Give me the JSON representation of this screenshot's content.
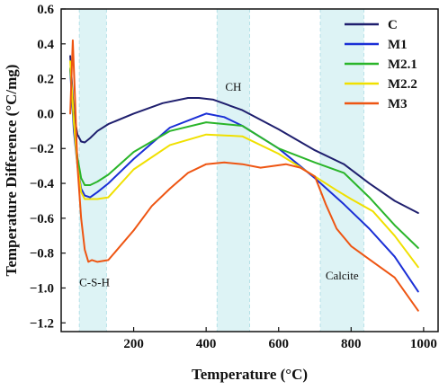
{
  "chart_data": {
    "type": "line",
    "xlabel": "Temperature (°C)",
    "ylabel": "Temperature Difference (°C/mg)",
    "xlim": [
      0,
      1040
    ],
    "ylim": [
      -1.25,
      0.6
    ],
    "xticks": [
      {
        "v": 200,
        "label": "200"
      },
      {
        "v": 400,
        "label": "400"
      },
      {
        "v": 600,
        "label": "600"
      },
      {
        "v": 800,
        "label": "800"
      },
      {
        "v": 1000,
        "label": "1000"
      }
    ],
    "yticks": [
      {
        "v": 0.6,
        "label": "0.6"
      },
      {
        "v": 0.4,
        "label": "0.4"
      },
      {
        "v": 0.2,
        "label": "0.2"
      },
      {
        "v": 0.0,
        "label": "0.0"
      },
      {
        "v": -0.2,
        "label": "−0.2"
      },
      {
        "v": -0.4,
        "label": "−0.4"
      },
      {
        "v": -0.6,
        "label": "−0.6"
      },
      {
        "v": -0.8,
        "label": "−0.8"
      },
      {
        "v": -1.0,
        "label": "−1.0"
      },
      {
        "v": -1.2,
        "label": "−1.2"
      }
    ],
    "grid": false,
    "legend_position": "top-right",
    "regions": [
      {
        "label": "C-S-H",
        "x0": 50,
        "x1": 125,
        "label_x": 92,
        "label_y": -0.99,
        "color": "#ddf3f5"
      },
      {
        "label": "CH",
        "x0": 430,
        "x1": 520,
        "label_x": 475,
        "label_y": 0.13,
        "color": "#ddf3f5"
      },
      {
        "label": "Calcite",
        "x0": 715,
        "x1": 835,
        "label_x": 775,
        "label_y": -0.95,
        "color": "#ddf3f5"
      }
    ],
    "series": [
      {
        "name": "C",
        "color": "#1f1f6e",
        "x": [
          25,
          35,
          45,
          55,
          65,
          80,
          100,
          130,
          200,
          280,
          350,
          380,
          420,
          500,
          600,
          700,
          780,
          850,
          920,
          985
        ],
        "y": [
          0.33,
          0.0,
          -0.12,
          -0.16,
          -0.165,
          -0.14,
          -0.1,
          -0.06,
          0.0,
          0.06,
          0.09,
          0.09,
          0.08,
          0.02,
          -0.09,
          -0.21,
          -0.29,
          -0.4,
          -0.5,
          -0.57
        ]
      },
      {
        "name": "M1",
        "color": "#1a2fd6",
        "x": [
          25,
          35,
          45,
          55,
          65,
          80,
          100,
          130,
          200,
          300,
          400,
          450,
          500,
          600,
          700,
          780,
          850,
          920,
          985
        ],
        "y": [
          0.25,
          -0.1,
          -0.3,
          -0.43,
          -0.47,
          -0.48,
          -0.45,
          -0.4,
          -0.26,
          -0.08,
          0.0,
          -0.02,
          -0.07,
          -0.2,
          -0.37,
          -0.52,
          -0.66,
          -0.82,
          -1.02
        ]
      },
      {
        "name": "M2.1",
        "color": "#2ab52a",
        "x": [
          25,
          35,
          45,
          55,
          65,
          80,
          100,
          130,
          200,
          300,
          400,
          500,
          600,
          700,
          780,
          850,
          920,
          985
        ],
        "y": [
          0.26,
          -0.05,
          -0.25,
          -0.37,
          -0.41,
          -0.41,
          -0.39,
          -0.35,
          -0.22,
          -0.1,
          -0.05,
          -0.07,
          -0.2,
          -0.28,
          -0.34,
          -0.48,
          -0.64,
          -0.77
        ]
      },
      {
        "name": "M2.2",
        "color": "#f0e000",
        "x": [
          25,
          35,
          45,
          55,
          65,
          80,
          100,
          130,
          200,
          300,
          400,
          500,
          600,
          700,
          760,
          800,
          860,
          920,
          985
        ],
        "y": [
          0.3,
          -0.05,
          -0.3,
          -0.45,
          -0.49,
          -0.49,
          -0.49,
          -0.48,
          -0.32,
          -0.18,
          -0.12,
          -0.13,
          -0.23,
          -0.36,
          -0.44,
          -0.49,
          -0.56,
          -0.7,
          -0.88
        ]
      },
      {
        "name": "M3",
        "color": "#ee5512",
        "x": [
          25,
          32,
          38,
          45,
          55,
          65,
          75,
          85,
          100,
          130,
          200,
          250,
          300,
          350,
          400,
          450,
          500,
          550,
          620,
          660,
          700,
          730,
          760,
          800,
          860,
          920,
          985
        ],
        "y": [
          0.0,
          0.42,
          0.1,
          -0.3,
          -0.6,
          -0.78,
          -0.85,
          -0.84,
          -0.85,
          -0.84,
          -0.67,
          -0.53,
          -0.43,
          -0.34,
          -0.29,
          -0.28,
          -0.29,
          -0.31,
          -0.29,
          -0.31,
          -0.36,
          -0.52,
          -0.66,
          -0.76,
          -0.85,
          -0.94,
          -1.13
        ]
      }
    ]
  }
}
